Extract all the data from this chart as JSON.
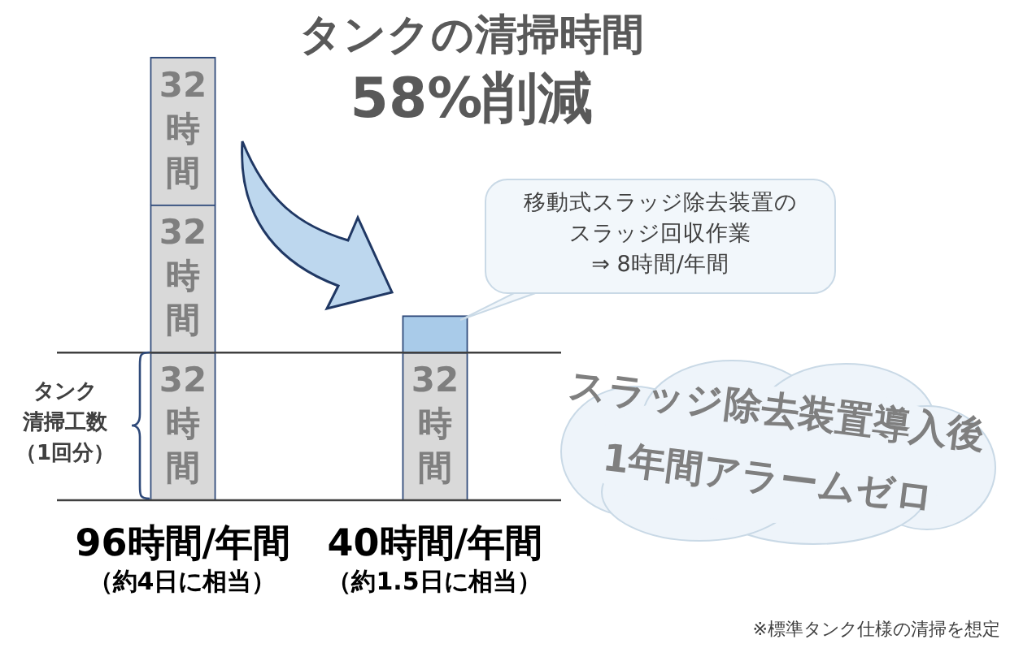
{
  "chart_data": {
    "type": "bar",
    "stacked": true,
    "title": "タンクの清掃時間",
    "subtitle": "58%削減",
    "categories": [
      "96時間/年間",
      "40時間/年間"
    ],
    "series": [
      {
        "values": [
          32,
          32
        ],
        "colors": [
          "#d9d9d9",
          "#d9d9d9"
        ],
        "value_labels": [
          "32時間",
          "32時間"
        ]
      },
      {
        "values": [
          32,
          8
        ],
        "colors": [
          "#d9d9d9",
          "#a9cbe9"
        ],
        "value_labels": [
          "32時間",
          null
        ]
      },
      {
        "values": [
          32,
          null
        ],
        "colors": [
          "#d9d9d9",
          "#d9d9d9"
        ],
        "value_labels": [
          "32時間",
          null
        ]
      }
    ],
    "ref_lines": [
      {
        "axis": "y",
        "value": 32
      }
    ],
    "annotations": [
      "移動式スラッジ除去装置のスラッジ回収作業\n⇒ 8時間/年間",
      "タンク",
      "清掃工数",
      "（1回分）",
      "スラッジ除去装置導入後\n1年間アラームゼロ",
      "（約4日に相当）",
      "（約1.5日に相当）",
      "※標準タンク仕様の清掃を想定"
    ],
    "legend": false
  }
}
